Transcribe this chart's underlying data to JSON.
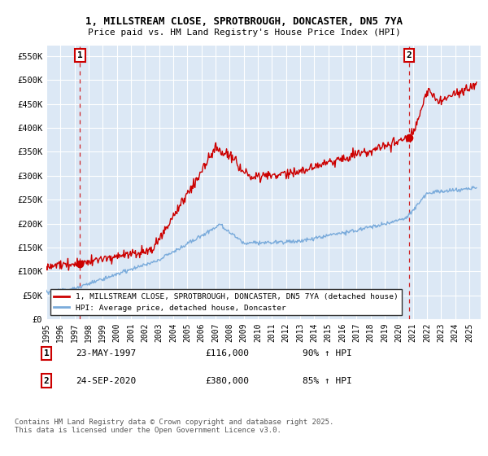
{
  "title_line1": "1, MILLSTREAM CLOSE, SPROTBROUGH, DONCASTER, DN5 7YA",
  "title_line2": "Price paid vs. HM Land Registry's House Price Index (HPI)",
  "xlim_start": 1995.0,
  "xlim_end": 2025.8,
  "ylim_min": 0,
  "ylim_max": 572000,
  "yticks": [
    0,
    50000,
    100000,
    150000,
    200000,
    250000,
    300000,
    350000,
    400000,
    450000,
    500000,
    550000
  ],
  "ytick_labels": [
    "£0",
    "£50K",
    "£100K",
    "£150K",
    "£200K",
    "£250K",
    "£300K",
    "£350K",
    "£400K",
    "£450K",
    "£500K",
    "£550K"
  ],
  "xticks": [
    1995,
    1996,
    1997,
    1998,
    1999,
    2000,
    2001,
    2002,
    2003,
    2004,
    2005,
    2006,
    2007,
    2008,
    2009,
    2010,
    2011,
    2012,
    2013,
    2014,
    2015,
    2016,
    2017,
    2018,
    2019,
    2020,
    2021,
    2022,
    2023,
    2024,
    2025
  ],
  "bg_color": "#dce8f5",
  "fig_bg_color": "#ffffff",
  "grid_color": "#ffffff",
  "red_line_color": "#cc0000",
  "blue_line_color": "#7aabdb",
  "marker1_x": 1997.39,
  "marker1_y": 116000,
  "marker2_x": 2020.73,
  "marker2_y": 380000,
  "vline1_x": 1997.39,
  "vline2_x": 2020.73,
  "legend_label_red": "1, MILLSTREAM CLOSE, SPROTBROUGH, DONCASTER, DN5 7YA (detached house)",
  "legend_label_blue": "HPI: Average price, detached house, Doncaster",
  "footer_text": "Contains HM Land Registry data © Crown copyright and database right 2025.\nThis data is licensed under the Open Government Licence v3.0.",
  "table_row1": [
    "1",
    "23-MAY-1997",
    "£116,000",
    "90% ↑ HPI"
  ],
  "table_row2": [
    "2",
    "24-SEP-2020",
    "£380,000",
    "85% ↑ HPI"
  ]
}
